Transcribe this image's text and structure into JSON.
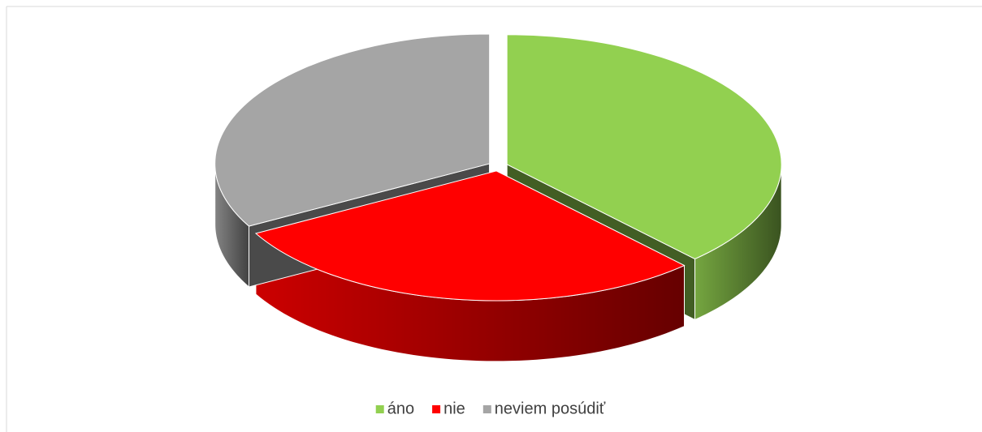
{
  "chart_data": {
    "type": "pie3d",
    "categories": [
      "áno",
      "nie",
      "neviem posúdiť"
    ],
    "values": [
      38,
      29,
      33
    ],
    "colors": [
      "#92d050",
      "#ff0000",
      "#a5a5a5"
    ],
    "legend": "bottom"
  }
}
